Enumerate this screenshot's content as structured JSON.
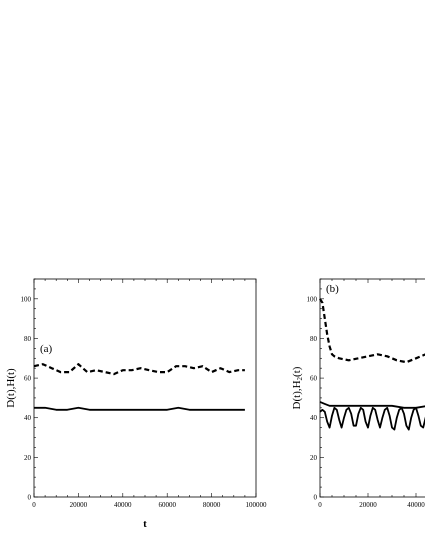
{
  "chart_data": [
    {
      "type": "line",
      "panel_label": "(a)",
      "ylabel": "D(t),H(t)",
      "xlabel": "t",
      "xlim": [
        0,
        100000
      ],
      "ylim": [
        0,
        110
      ],
      "x_ticks": [
        "0",
        "20000",
        "40000",
        "60000",
        "80000",
        "100000"
      ],
      "y_ticks": [
        "0",
        "20",
        "40",
        "60",
        "80",
        "100"
      ],
      "grid": false,
      "series": [
        {
          "style": "dashed",
          "x": [
            0,
            4000,
            8000,
            12000,
            16000,
            20000,
            24000,
            28000,
            32000,
            36000,
            40000,
            44000,
            48000,
            52000,
            56000,
            60000,
            64000,
            68000,
            72000,
            76000,
            80000,
            84000,
            88000,
            92000,
            95000
          ],
          "y": [
            66,
            67,
            65,
            63,
            63,
            67,
            63,
            64,
            63,
            62,
            64,
            64,
            65,
            64,
            63,
            63,
            66,
            66,
            65,
            66,
            63,
            65,
            63,
            64,
            64
          ]
        },
        {
          "style": "solid",
          "x": [
            0,
            5000,
            10000,
            15000,
            20000,
            25000,
            30000,
            35000,
            40000,
            45000,
            50000,
            55000,
            60000,
            65000,
            70000,
            75000,
            80000,
            85000,
            90000,
            95000
          ],
          "y": [
            45,
            45,
            44,
            44,
            45,
            44,
            44,
            44,
            44,
            44,
            44,
            44,
            44,
            45,
            44,
            44,
            44,
            44,
            44,
            44
          ]
        }
      ]
    },
    {
      "type": "line",
      "panel_label": "(b)",
      "ylabel": "D(t),H",
      "ylabel_sub": "2",
      "ylabel_tail": "(t)",
      "xlim": [
        0,
        50000
      ],
      "ylim": [
        0,
        110
      ],
      "x_ticks": [
        "0",
        "20000",
        "40000"
      ],
      "y_ticks": [
        "0",
        "20",
        "40",
        "60",
        "80",
        "100"
      ],
      "grid": false,
      "series": [
        {
          "style": "dashed",
          "x": [
            0,
            1000,
            2000,
            3000,
            4000,
            5000,
            6000,
            8000,
            12000,
            16000,
            20000,
            24000,
            28000,
            32000,
            36000,
            40000,
            44000,
            47000
          ],
          "y": [
            100,
            98,
            90,
            82,
            76,
            72,
            71,
            70,
            69,
            70,
            71,
            72,
            71,
            69,
            68,
            70,
            72,
            71
          ]
        },
        {
          "style": "solid",
          "x": [
            0,
            2000,
            4000,
            6000,
            10000,
            15000,
            20000,
            25000,
            30000,
            35000,
            40000,
            45000,
            47000
          ],
          "y": [
            48,
            47,
            46,
            46,
            46,
            46,
            46,
            46,
            46,
            45,
            45,
            46,
            46
          ]
        },
        {
          "style": "solid",
          "x": [
            0,
            1000,
            2000,
            3000,
            4000,
            5000,
            6000,
            7000,
            8000,
            9000,
            10000,
            11000,
            12000,
            13000,
            14000,
            15000,
            16000,
            17000,
            18000,
            19000,
            20000,
            21000,
            22000,
            23000,
            24000,
            25000,
            26000,
            27000,
            28000,
            29000,
            30000,
            31000,
            32000,
            33000,
            34000,
            35000,
            36000,
            37000,
            38000,
            39000,
            40000,
            41000,
            42000,
            43000,
            44000,
            45000,
            46000,
            47000
          ],
          "y": [
            43,
            44,
            43,
            38,
            35,
            41,
            45,
            44,
            39,
            35,
            40,
            44,
            45,
            42,
            36,
            36,
            42,
            45,
            44,
            38,
            35,
            41,
            45,
            44,
            39,
            35,
            40,
            44,
            45,
            41,
            35,
            34,
            40,
            44,
            45,
            42,
            36,
            34,
            40,
            44,
            45,
            41,
            36,
            35,
            40,
            44,
            44,
            43
          ]
        }
      ]
    }
  ]
}
